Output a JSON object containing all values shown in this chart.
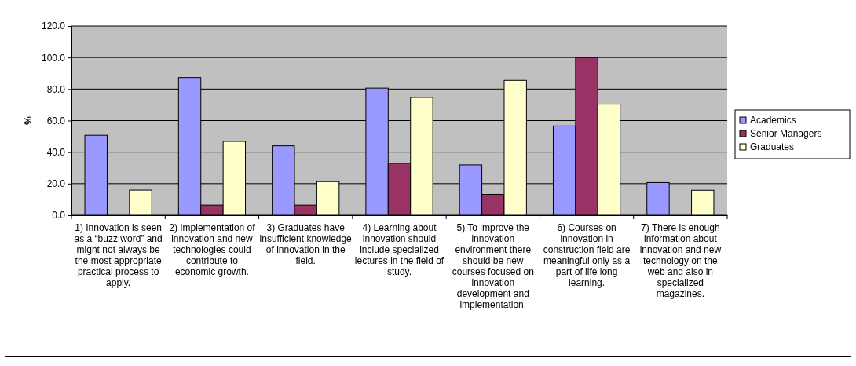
{
  "chart_data": {
    "type": "bar",
    "ylabel": "%",
    "categories": [
      "1) Innovation is seen as a “buzz word” and might not always be the most appropriate practical process to apply.",
      "2) Implementation of innovation and new technologies could contribute to economic growth.",
      "3) Graduates have insufficient knowledge of innovation in the field.",
      "4) Learning about innovation should include specialized lectures in the field of study.",
      "5) To improve the innovation environment there should be new courses focused on innovation development and implementation.",
      "6) Courses on innovation in construction field are meaningful only as a part of life long learning.",
      "7) There is enough information about innovation and new technology on the web and also in specialized magazines."
    ],
    "series": [
      {
        "name": "Academics",
        "color": "#9999ff",
        "values": [
          50.7,
          87.3,
          44.0,
          80.6,
          31.9,
          56.6,
          20.7
        ]
      },
      {
        "name": "Senior Managers",
        "color": "#993366",
        "values": [
          null,
          6.4,
          6.4,
          32.9,
          13.2,
          100,
          null
        ]
      },
      {
        "name": "Graduates",
        "color": "#ffffcc",
        "values": [
          15.9,
          46.8,
          21.3,
          74.7,
          85.5,
          70.4,
          15.8
        ]
      }
    ],
    "ylim": [
      0,
      120
    ],
    "yticks": [
      {
        "value": 0,
        "label": "0.0"
      },
      {
        "value": 20,
        "label": "20.0"
      },
      {
        "value": 40,
        "label": "40.0"
      },
      {
        "value": 60,
        "label": "60.0"
      },
      {
        "value": 80,
        "label": "80.0"
      },
      {
        "value": 100,
        "label": "100.0"
      },
      {
        "value": 120,
        "label": "120.0"
      }
    ],
    "grid": "y",
    "legend": "right"
  }
}
